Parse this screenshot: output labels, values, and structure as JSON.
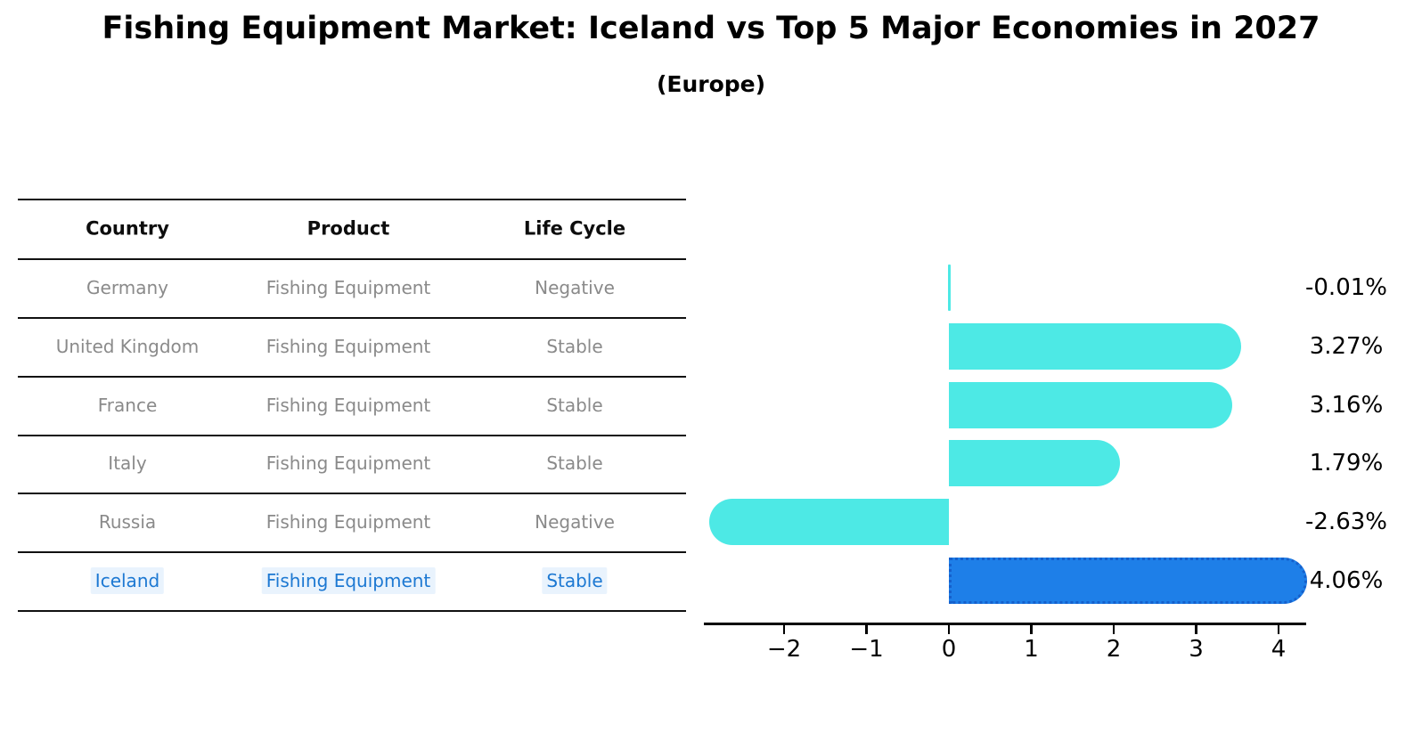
{
  "title": "Fishing Equipment Market: Iceland vs Top 5 Major Economies in 2027",
  "subtitle": "(Europe)",
  "table": {
    "headers": [
      "Country",
      "Product",
      "Life Cycle"
    ],
    "rows": [
      {
        "country": "Germany",
        "product": "Fishing Equipment",
        "life_cycle": "Negative",
        "highlighted": false
      },
      {
        "country": "United Kingdom",
        "product": "Fishing Equipment",
        "life_cycle": "Stable",
        "highlighted": false
      },
      {
        "country": "France",
        "product": "Fishing Equipment",
        "life_cycle": "Stable",
        "highlighted": false
      },
      {
        "country": "Italy",
        "product": "Fishing Equipment",
        "life_cycle": "Stable",
        "highlighted": false
      },
      {
        "country": "Russia",
        "product": "Fishing Equipment",
        "life_cycle": "Negative",
        "highlighted": false
      },
      {
        "country": "Iceland",
        "product": "Fishing Equipment",
        "life_cycle": "Stable",
        "highlighted": true
      }
    ]
  },
  "chart_data": {
    "type": "bar",
    "orientation": "horizontal",
    "title": "Fishing Equipment Market: Iceland vs Top 5 Major Economies in 2027",
    "subtitle": "(Europe)",
    "categories": [
      "Germany",
      "United Kingdom",
      "France",
      "Italy",
      "Russia",
      "Iceland"
    ],
    "values": [
      -0.01,
      3.27,
      3.16,
      1.79,
      -2.63,
      4.06
    ],
    "value_labels": [
      "-0.01%",
      "3.27%",
      "3.16%",
      "1.79%",
      "-2.63%",
      "4.06%"
    ],
    "xlabel": "",
    "ylabel": "",
    "xlim": [
      -2.97,
      4.34
    ],
    "xtick_labels": [
      "−2",
      "−1",
      "0",
      "1",
      "2",
      "3",
      "4"
    ],
    "xtick_values": [
      -2,
      -1,
      0,
      1,
      2,
      3,
      4
    ],
    "grid": false,
    "legend": false,
    "highlight_index": 5
  },
  "colors": {
    "bar_default": "#4DE9E5",
    "bar_highlight": "#1E7FE8",
    "bar_highlight_border": "#1560CC",
    "table_text_muted": "#8A8A8A",
    "table_text_header": "#0D0D0D",
    "table_text_highlight": "#1C78D2",
    "highlight_cell_bg": "#E9F3FD",
    "axis": "#000000"
  }
}
